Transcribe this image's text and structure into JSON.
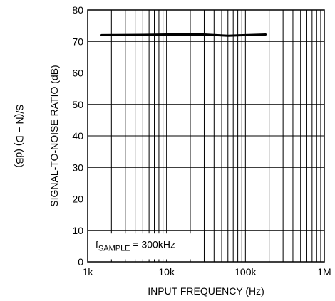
{
  "chart_data": {
    "type": "line",
    "title": "",
    "xlabel": "INPUT FREQUENCY (Hz)",
    "ylabel": "SIGNAL-TO-NOISE RATIO (dB)",
    "ylabel_secondary": "S/(N + D) (dB)",
    "x_scale": "log",
    "xlim": [
      1000,
      1000000
    ],
    "ylim": [
      0,
      80
    ],
    "x_ticks": [
      {
        "value": 1000,
        "label": "1k"
      },
      {
        "value": 10000,
        "label": "10k"
      },
      {
        "value": 100000,
        "label": "100k"
      },
      {
        "value": 1000000,
        "label": "1M"
      }
    ],
    "y_ticks": [
      {
        "value": 0,
        "label": "0"
      },
      {
        "value": 10,
        "label": "10"
      },
      {
        "value": 20,
        "label": "20"
      },
      {
        "value": 30,
        "label": "30"
      },
      {
        "value": 40,
        "label": "40"
      },
      {
        "value": 50,
        "label": "50"
      },
      {
        "value": 60,
        "label": "60"
      },
      {
        "value": 70,
        "label": "70"
      },
      {
        "value": 80,
        "label": "80"
      }
    ],
    "grid": true,
    "annotation": {
      "main": "f",
      "sub": "SAMPLE",
      "rest": " = 300kHz"
    },
    "series": [
      {
        "color": "#000000",
        "x": [
          1500,
          5000,
          10000,
          30000,
          60000,
          100000,
          180000
        ],
        "y": [
          72.0,
          72.1,
          72.2,
          72.2,
          71.8,
          72.0,
          72.2
        ]
      }
    ]
  }
}
